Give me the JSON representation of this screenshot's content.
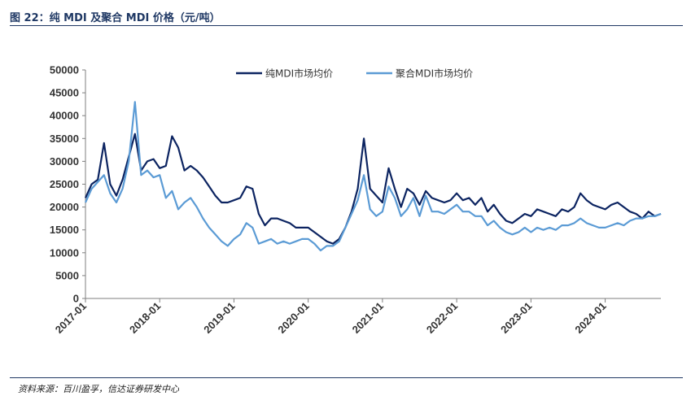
{
  "header": {
    "title": "图 22：纯 MDI 及聚合 MDI 价格（元/吨）"
  },
  "footer": {
    "source": "资料来源：百川盈孚，信达证券研发中心"
  },
  "chart_data": {
    "type": "line",
    "xlabel": "",
    "ylabel": "",
    "ylim": [
      0,
      50000
    ],
    "y_ticks": [
      "0",
      "5000",
      "10000",
      "15000",
      "20000",
      "25000",
      "30000",
      "35000",
      "40000",
      "45000",
      "50000"
    ],
    "x_ticks": [
      "2017-01",
      "2018-01",
      "2019-01",
      "2020-01",
      "2021-01",
      "2022-01",
      "2023-01",
      "2024-01"
    ],
    "x_range": [
      "2017-01",
      "2024-10"
    ],
    "legend_position": "top-center",
    "series": [
      {
        "name": "纯MDI市场均价",
        "color": "#0c2461",
        "points": [
          [
            "2017-01",
            22000
          ],
          [
            "2017-02",
            25000
          ],
          [
            "2017-03",
            26000
          ],
          [
            "2017-04",
            34000
          ],
          [
            "2017-05",
            25000
          ],
          [
            "2017-06",
            22500
          ],
          [
            "2017-07",
            26000
          ],
          [
            "2017-08",
            31000
          ],
          [
            "2017-09",
            36000
          ],
          [
            "2017-10",
            28000
          ],
          [
            "2017-11",
            30000
          ],
          [
            "2017-12",
            30500
          ],
          [
            "2018-01",
            28500
          ],
          [
            "2018-02",
            29000
          ],
          [
            "2018-03",
            35500
          ],
          [
            "2018-04",
            33000
          ],
          [
            "2018-05",
            28000
          ],
          [
            "2018-06",
            29000
          ],
          [
            "2018-07",
            28000
          ],
          [
            "2018-08",
            26500
          ],
          [
            "2018-09",
            24500
          ],
          [
            "2018-10",
            22500
          ],
          [
            "2018-11",
            21000
          ],
          [
            "2018-12",
            21000
          ],
          [
            "2019-01",
            21500
          ],
          [
            "2019-02",
            22000
          ],
          [
            "2019-03",
            24500
          ],
          [
            "2019-04",
            24000
          ],
          [
            "2019-05",
            18500
          ],
          [
            "2019-06",
            16000
          ],
          [
            "2019-07",
            17500
          ],
          [
            "2019-08",
            17500
          ],
          [
            "2019-09",
            17000
          ],
          [
            "2019-10",
            16500
          ],
          [
            "2019-11",
            15500
          ],
          [
            "2019-12",
            15500
          ],
          [
            "2020-01",
            15500
          ],
          [
            "2020-02",
            14500
          ],
          [
            "2020-03",
            13500
          ],
          [
            "2020-04",
            12500
          ],
          [
            "2020-05",
            12000
          ],
          [
            "2020-06",
            13000
          ],
          [
            "2020-07",
            15500
          ],
          [
            "2020-08",
            19000
          ],
          [
            "2020-09",
            24000
          ],
          [
            "2020-10",
            35000
          ],
          [
            "2020-11",
            24000
          ],
          [
            "2020-12",
            22500
          ],
          [
            "2021-01",
            21000
          ],
          [
            "2021-02",
            28500
          ],
          [
            "2021-03",
            24000
          ],
          [
            "2021-04",
            20000
          ],
          [
            "2021-05",
            24000
          ],
          [
            "2021-06",
            23000
          ],
          [
            "2021-07",
            20500
          ],
          [
            "2021-08",
            23500
          ],
          [
            "2021-09",
            22000
          ],
          [
            "2021-10",
            21500
          ],
          [
            "2021-11",
            21000
          ],
          [
            "2021-12",
            21500
          ],
          [
            "2022-01",
            23000
          ],
          [
            "2022-02",
            21500
          ],
          [
            "2022-03",
            22000
          ],
          [
            "2022-04",
            20500
          ],
          [
            "2022-05",
            22000
          ],
          [
            "2022-06",
            19000
          ],
          [
            "2022-07",
            20500
          ],
          [
            "2022-08",
            18500
          ],
          [
            "2022-09",
            17000
          ],
          [
            "2022-10",
            16500
          ],
          [
            "2022-11",
            17500
          ],
          [
            "2022-12",
            18500
          ],
          [
            "2023-01",
            18000
          ],
          [
            "2023-02",
            19500
          ],
          [
            "2023-03",
            19000
          ],
          [
            "2023-04",
            18500
          ],
          [
            "2023-05",
            18000
          ],
          [
            "2023-06",
            19500
          ],
          [
            "2023-07",
            19000
          ],
          [
            "2023-08",
            20000
          ],
          [
            "2023-09",
            23000
          ],
          [
            "2023-10",
            21500
          ],
          [
            "2023-11",
            20500
          ],
          [
            "2023-12",
            20000
          ],
          [
            "2024-01",
            19500
          ],
          [
            "2024-02",
            20500
          ],
          [
            "2024-03",
            21000
          ],
          [
            "2024-04",
            20000
          ],
          [
            "2024-05",
            19000
          ],
          [
            "2024-06",
            18500
          ],
          [
            "2024-07",
            17500
          ],
          [
            "2024-08",
            19000
          ],
          [
            "2024-09",
            18000
          ],
          [
            "2024-10",
            18500
          ]
        ]
      },
      {
        "name": "聚合MDI市场均价",
        "color": "#5b9bd5",
        "points": [
          [
            "2017-01",
            21000
          ],
          [
            "2017-02",
            24000
          ],
          [
            "2017-03",
            25500
          ],
          [
            "2017-04",
            27000
          ],
          [
            "2017-05",
            23000
          ],
          [
            "2017-06",
            21000
          ],
          [
            "2017-07",
            24000
          ],
          [
            "2017-08",
            30000
          ],
          [
            "2017-09",
            43000
          ],
          [
            "2017-10",
            27000
          ],
          [
            "2017-11",
            28000
          ],
          [
            "2017-12",
            26500
          ],
          [
            "2018-01",
            27000
          ],
          [
            "2018-02",
            22000
          ],
          [
            "2018-03",
            23500
          ],
          [
            "2018-04",
            19500
          ],
          [
            "2018-05",
            21000
          ],
          [
            "2018-06",
            22000
          ],
          [
            "2018-07",
            20000
          ],
          [
            "2018-08",
            17500
          ],
          [
            "2018-09",
            15500
          ],
          [
            "2018-10",
            14000
          ],
          [
            "2018-11",
            12500
          ],
          [
            "2018-12",
            11500
          ],
          [
            "2019-01",
            13000
          ],
          [
            "2019-02",
            14000
          ],
          [
            "2019-03",
            16500
          ],
          [
            "2019-04",
            15500
          ],
          [
            "2019-05",
            12000
          ],
          [
            "2019-06",
            12500
          ],
          [
            "2019-07",
            13000
          ],
          [
            "2019-08",
            12000
          ],
          [
            "2019-09",
            12500
          ],
          [
            "2019-10",
            12000
          ],
          [
            "2019-11",
            12500
          ],
          [
            "2019-12",
            13000
          ],
          [
            "2020-01",
            13000
          ],
          [
            "2020-02",
            12000
          ],
          [
            "2020-03",
            10500
          ],
          [
            "2020-04",
            11500
          ],
          [
            "2020-05",
            11500
          ],
          [
            "2020-06",
            12500
          ],
          [
            "2020-07",
            15500
          ],
          [
            "2020-08",
            18500
          ],
          [
            "2020-09",
            21500
          ],
          [
            "2020-10",
            27000
          ],
          [
            "2020-11",
            19500
          ],
          [
            "2020-12",
            18000
          ],
          [
            "2021-01",
            19000
          ],
          [
            "2021-02",
            24500
          ],
          [
            "2021-03",
            22000
          ],
          [
            "2021-04",
            18000
          ],
          [
            "2021-05",
            19500
          ],
          [
            "2021-06",
            22000
          ],
          [
            "2021-07",
            18000
          ],
          [
            "2021-08",
            22500
          ],
          [
            "2021-09",
            19000
          ],
          [
            "2021-10",
            19000
          ],
          [
            "2021-11",
            18500
          ],
          [
            "2021-12",
            19500
          ],
          [
            "2022-01",
            20500
          ],
          [
            "2022-02",
            19000
          ],
          [
            "2022-03",
            19000
          ],
          [
            "2022-04",
            18000
          ],
          [
            "2022-05",
            18000
          ],
          [
            "2022-06",
            16000
          ],
          [
            "2022-07",
            17000
          ],
          [
            "2022-08",
            15500
          ],
          [
            "2022-09",
            14500
          ],
          [
            "2022-10",
            14000
          ],
          [
            "2022-11",
            14500
          ],
          [
            "2022-12",
            15500
          ],
          [
            "2023-01",
            14500
          ],
          [
            "2023-02",
            15500
          ],
          [
            "2023-03",
            15000
          ],
          [
            "2023-04",
            15500
          ],
          [
            "2023-05",
            15000
          ],
          [
            "2023-06",
            16000
          ],
          [
            "2023-07",
            16000
          ],
          [
            "2023-08",
            16500
          ],
          [
            "2023-09",
            17500
          ],
          [
            "2023-10",
            16500
          ],
          [
            "2023-11",
            16000
          ],
          [
            "2023-12",
            15500
          ],
          [
            "2024-01",
            15500
          ],
          [
            "2024-02",
            16000
          ],
          [
            "2024-03",
            16500
          ],
          [
            "2024-04",
            16000
          ],
          [
            "2024-05",
            17000
          ],
          [
            "2024-06",
            17500
          ],
          [
            "2024-07",
            17500
          ],
          [
            "2024-08",
            18000
          ],
          [
            "2024-09",
            18000
          ],
          [
            "2024-10",
            18500
          ]
        ]
      }
    ]
  }
}
